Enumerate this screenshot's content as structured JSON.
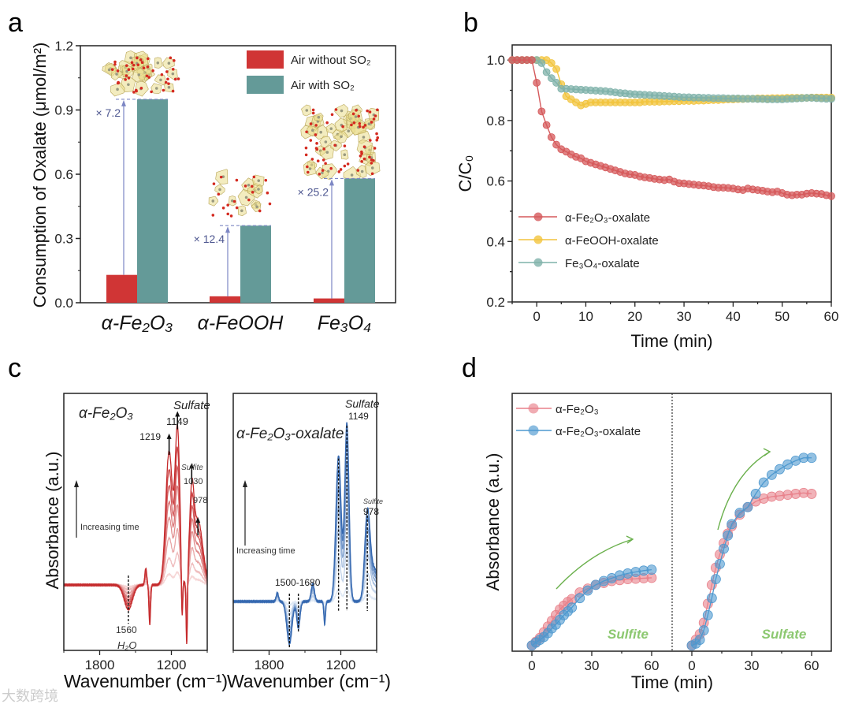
{
  "panels": {
    "a": "a",
    "b": "b",
    "c": "c",
    "d": "d"
  },
  "watermark": "大数跨境",
  "chart_data": [
    {
      "id": "a",
      "type": "bar",
      "categories": [
        "α-Fe₂O₃",
        "α-FeOOH",
        "Fe₃O₄"
      ],
      "series": [
        {
          "name": "Air without SO₂",
          "color": "#d03535",
          "values": [
            0.13,
            0.03,
            0.02
          ]
        },
        {
          "name": "Air with SO₂",
          "color": "#649a98",
          "values": [
            0.95,
            0.36,
            0.58
          ]
        }
      ],
      "annotations": [
        "× 7.2",
        "× 12.4",
        "× 25.2"
      ],
      "ylabel": "Consumption of Oxalate (μmol/m²)",
      "ylim": [
        0,
        1.2
      ],
      "yticks": [
        "0.0",
        "0.3",
        "0.6",
        "0.9",
        "1.2"
      ],
      "legend": "top-right",
      "annotation_color": "#7d87c4"
    },
    {
      "id": "b",
      "type": "line",
      "xlabel": "Time (min)",
      "ylabel": "C/C₀",
      "xlim": [
        -5,
        60
      ],
      "ylim": [
        0.2,
        1.05
      ],
      "xticks": [
        "0",
        "10",
        "20",
        "30",
        "40",
        "50",
        "60"
      ],
      "yticks": [
        "0.2",
        "0.4",
        "0.6",
        "0.8",
        "1.0"
      ],
      "legend": "bottom-left",
      "x_start": -5,
      "x_step": 1,
      "series": [
        {
          "name": "α-FeOOH-oxalate",
          "color": "#f2c43d",
          "values": [
            1.0,
            1.0,
            1.0,
            1.0,
            1.0,
            1.0,
            1.0,
            1.0,
            0.99,
            0.97,
            0.92,
            0.88,
            0.87,
            0.86,
            0.85,
            0.855,
            0.86,
            0.86,
            0.86,
            0.86,
            0.86,
            0.86,
            0.86,
            0.86,
            0.86,
            0.86,
            0.86,
            0.862,
            0.862,
            0.862,
            0.862,
            0.863,
            0.863,
            0.864,
            0.864,
            0.865,
            0.865,
            0.865,
            0.866,
            0.866,
            0.867,
            0.868,
            0.868,
            0.869,
            0.87,
            0.87,
            0.871,
            0.871,
            0.872,
            0.872,
            0.873,
            0.873,
            0.873,
            0.874,
            0.874,
            0.874,
            0.875,
            0.875,
            0.875,
            0.875,
            0.875,
            0.876,
            0.876,
            0.876,
            0.876,
            0.876
          ]
        },
        {
          "name": "Fe₃O₄-oxalate",
          "color": "#7fb2aa",
          "values": [
            1.0,
            1.0,
            1.0,
            1.0,
            1.0,
            1.0,
            0.99,
            0.96,
            0.94,
            0.925,
            0.905,
            0.905,
            0.904,
            0.903,
            0.902,
            0.901,
            0.9,
            0.899,
            0.898,
            0.897,
            0.895,
            0.893,
            0.891,
            0.89,
            0.888,
            0.887,
            0.886,
            0.885,
            0.884,
            0.883,
            0.882,
            0.881,
            0.88,
            0.879,
            0.878,
            0.877,
            0.877,
            0.876,
            0.876,
            0.875,
            0.875,
            0.874,
            0.874,
            0.874,
            0.873,
            0.873,
            0.873,
            0.872,
            0.872,
            0.872,
            0.871,
            0.871,
            0.87,
            0.87,
            0.87,
            0.87,
            0.871,
            0.872,
            0.873,
            0.874,
            0.875,
            0.875,
            0.874,
            0.873,
            0.872,
            0.872
          ]
        },
        {
          "name": "α-Fe₂O₃-oxalate",
          "color": "#d5595b",
          "values": [
            1.0,
            1.0,
            1.0,
            1.0,
            1.0,
            0.925,
            0.83,
            0.785,
            0.745,
            0.72,
            0.705,
            0.697,
            0.688,
            0.68,
            0.675,
            0.665,
            0.66,
            0.655,
            0.65,
            0.645,
            0.64,
            0.635,
            0.63,
            0.625,
            0.622,
            0.62,
            0.615,
            0.612,
            0.61,
            0.607,
            0.605,
            0.603,
            0.605,
            0.598,
            0.593,
            0.592,
            0.59,
            0.588,
            0.586,
            0.585,
            0.583,
            0.58,
            0.578,
            0.578,
            0.577,
            0.575,
            0.572,
            0.57,
            0.575,
            0.572,
            0.57,
            0.568,
            0.565,
            0.563,
            0.565,
            0.56,
            0.555,
            0.553,
            0.555,
            0.555,
            0.558,
            0.56,
            0.558,
            0.557,
            0.553,
            0.55
          ]
        }
      ],
      "legend_order": [
        2,
        0,
        1
      ]
    },
    {
      "id": "c-left",
      "type": "line",
      "title": "α-Fe₂O₃",
      "xlabel": "Wavenumber (cm⁻¹)",
      "ylabel": "Absorbance (a.u.)",
      "xlim": [
        2100,
        900
      ],
      "xticks": [
        "1800",
        "1200"
      ],
      "trace_fractions": [
        0.08,
        0.2,
        0.35,
        0.5,
        0.62,
        0.74,
        0.86,
        1.0
      ],
      "color_light": "#f6d6d6",
      "color_dark": "#c52a2c",
      "peaks": [
        {
          "center": 1560,
          "amplitude": -0.16,
          "width": 35
        },
        {
          "center": 1414,
          "amplitude": 0.11,
          "width": 8
        },
        {
          "center": 1381,
          "amplitude": -0.26,
          "width": 7
        },
        {
          "center": 1219,
          "amplitude": 0.87,
          "width": 28
        },
        {
          "center": 1149,
          "amplitude": 1.0,
          "width": 20
        },
        {
          "center": 1111,
          "amplitude": -0.35,
          "width": 6
        },
        {
          "center": 1071,
          "amplitude": -0.45,
          "width": 6
        },
        {
          "center": 1030,
          "amplitude": 0.5,
          "width": 18
        },
        {
          "center": 978,
          "amplitude": 0.42,
          "width": 40
        }
      ],
      "labels": {
        "sulfate": "Sulfate",
        "p1219": "1219",
        "p1149": "1149",
        "sulfite": "Sulfite",
        "p1030": "1030",
        "p978": "978",
        "time": "Increasing time",
        "p1560": "1560",
        "h2o": "H₂O"
      }
    },
    {
      "id": "c-right",
      "type": "line",
      "title": "α-Fe₂O₃-oxalate",
      "xlabel": "Wavenumber (cm⁻¹)",
      "xlim": [
        2100,
        900
      ],
      "xticks": [
        "1800",
        "1200"
      ],
      "trace_fractions": [
        0.08,
        0.3,
        0.5,
        0.65,
        0.78,
        0.9,
        1.0
      ],
      "color_light": "#dfe9f5",
      "color_dark": "#3568b0",
      "peaks": [
        {
          "center": 1731,
          "amplitude": 0.05,
          "width": 10
        },
        {
          "center": 1630,
          "amplitude": -0.24,
          "width": 22
        },
        {
          "center": 1555,
          "amplitude": -0.15,
          "width": 14
        },
        {
          "center": 1434,
          "amplitude": 0.1,
          "width": 14
        },
        {
          "center": 1335,
          "amplitude": -0.13,
          "width": 7
        },
        {
          "center": 1219,
          "amplitude": 0.82,
          "width": 22
        },
        {
          "center": 1149,
          "amplitude": 1.0,
          "width": 18
        },
        {
          "center": 978,
          "amplitude": 0.46,
          "width": 22
        },
        {
          "center": 920,
          "amplitude": 0.18,
          "width": 40
        }
      ],
      "labels": {
        "sulfate": "Sulfate",
        "p1149": "1149",
        "sulfite": "Sulfite",
        "p978": "978",
        "time": "Increasing time",
        "range": "1500-1680"
      }
    },
    {
      "id": "d",
      "type": "line",
      "xlabel": "Time (min)",
      "ylabel": "Absorbance (a.u.)",
      "ylim": [
        -0.03,
        1.33
      ],
      "xticks": [
        "0",
        "30",
        "60"
      ],
      "legend": "top-left",
      "panels": [
        {
          "label": "Sulfite",
          "x": [
            0,
            2,
            4,
            6,
            8,
            10,
            12,
            14,
            16,
            18,
            20,
            24,
            28,
            32,
            36,
            40,
            44,
            48,
            52,
            56,
            60
          ],
          "series": [
            {
              "name": "α-Fe₂O₃",
              "color": "#e8808a",
              "values": [
                0,
                0.02,
                0.04,
                0.07,
                0.1,
                0.13,
                0.16,
                0.19,
                0.21,
                0.23,
                0.245,
                0.28,
                0.3,
                0.32,
                0.33,
                0.34,
                0.345,
                0.35,
                0.352,
                0.355,
                0.357
              ]
            },
            {
              "name": "α-Fe₂O₃-oxalate",
              "color": "#4d98cf",
              "values": [
                0,
                0.015,
                0.03,
                0.045,
                0.065,
                0.09,
                0.11,
                0.135,
                0.16,
                0.18,
                0.2,
                0.25,
                0.29,
                0.32,
                0.34,
                0.355,
                0.37,
                0.38,
                0.388,
                0.395,
                0.4
              ]
            }
          ]
        },
        {
          "label": "Sulfate",
          "x": [
            0,
            2,
            4,
            6,
            8,
            10,
            12,
            14,
            16,
            18,
            20,
            24,
            28,
            32,
            36,
            40,
            44,
            48,
            52,
            56,
            60
          ],
          "series": [
            {
              "name": "α-Fe₂O₃",
              "color": "#e8808a",
              "values": [
                0,
                0.03,
                0.06,
                0.12,
                0.22,
                0.32,
                0.41,
                0.48,
                0.54,
                0.59,
                0.63,
                0.69,
                0.73,
                0.76,
                0.775,
                0.785,
                0.79,
                0.795,
                0.8,
                0.805,
                0.8
              ]
            },
            {
              "name": "α-Fe₂O₃-oxalate",
              "color": "#4d98cf",
              "values": [
                0,
                0.01,
                0.03,
                0.08,
                0.16,
                0.25,
                0.35,
                0.43,
                0.51,
                0.58,
                0.64,
                0.7,
                0.73,
                0.8,
                0.86,
                0.9,
                0.93,
                0.955,
                0.975,
                0.99,
                0.99
              ]
            }
          ]
        }
      ],
      "arrow_color": "#6ab04c"
    }
  ]
}
